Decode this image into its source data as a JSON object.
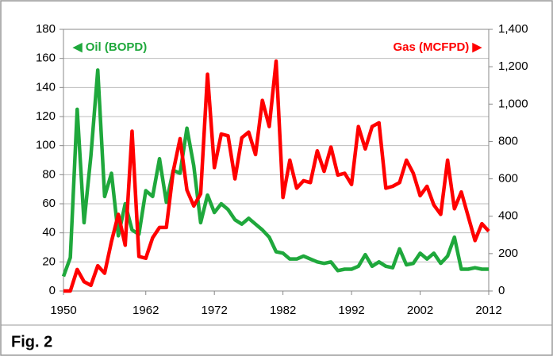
{
  "chart_data": {
    "type": "line",
    "caption": "Fig. 2",
    "annotations": [
      "◀ Oil (BOPD)",
      "Gas (MCFPD) ▶"
    ],
    "x": [
      1950,
      1951,
      1952,
      1953,
      1954,
      1955,
      1956,
      1957,
      1958,
      1959,
      1960,
      1961,
      1962,
      1963,
      1964,
      1965,
      1966,
      1967,
      1968,
      1969,
      1970,
      1971,
      1972,
      1973,
      1974,
      1975,
      1976,
      1977,
      1978,
      1979,
      1980,
      1981,
      1982,
      1983,
      1984,
      1985,
      1986,
      1987,
      1988,
      1989,
      1990,
      1991,
      1992,
      1993,
      1994,
      1995,
      1996,
      1997,
      1998,
      1999,
      2000,
      2001,
      2002,
      2003,
      2004,
      2005,
      2006,
      2007,
      2008,
      2009,
      2010,
      2011,
      2012
    ],
    "series": [
      {
        "name": "Oil (BOPD)",
        "color": "#1fa83c",
        "values": [
          10,
          23,
          125,
          47,
          93,
          152,
          65,
          81,
          38,
          60,
          42,
          39,
          69,
          65,
          91,
          61,
          83,
          81,
          112,
          86,
          47,
          66,
          54,
          60,
          56,
          49,
          46,
          50,
          46,
          42,
          37,
          27,
          26,
          22,
          22,
          24,
          22,
          20,
          19,
          20,
          14,
          15,
          15,
          17,
          25,
          17,
          20,
          17,
          16,
          29,
          18,
          19,
          26,
          22,
          26,
          19,
          24,
          37,
          15,
          15,
          16,
          15,
          15
        ]
      },
      {
        "name": "Gas (MCFPD)",
        "color": "#ff0000",
        "axis": "y2",
        "values": [
          0,
          0,
          115,
          50,
          30,
          135,
          95,
          265,
          410,
          245,
          855,
          185,
          175,
          285,
          340,
          340,
          640,
          815,
          540,
          455,
          520,
          1160,
          660,
          840,
          830,
          600,
          820,
          850,
          730,
          1020,
          880,
          1230,
          500,
          700,
          550,
          590,
          580,
          750,
          640,
          770,
          620,
          630,
          570,
          880,
          760,
          880,
          900,
          550,
          560,
          580,
          700,
          630,
          510,
          560,
          460,
          410,
          700,
          440,
          530,
          400,
          270,
          360,
          320
        ]
      }
    ],
    "xlim": [
      1950,
      2012
    ],
    "xticks": [
      1950,
      1962,
      1972,
      1982,
      1992,
      2002,
      2012
    ],
    "ylim": [
      0,
      180
    ],
    "yticks": [
      0,
      20,
      40,
      60,
      80,
      100,
      120,
      140,
      160,
      180
    ],
    "y2lim": [
      0,
      1400
    ],
    "y2ticks": [
      0,
      200,
      400,
      600,
      800,
      {
        "value": 1000,
        "label": "1,000"
      },
      {
        "value": 1200,
        "label": "1,200"
      },
      {
        "value": 1400,
        "label": "1,400"
      }
    ],
    "grid": true
  }
}
